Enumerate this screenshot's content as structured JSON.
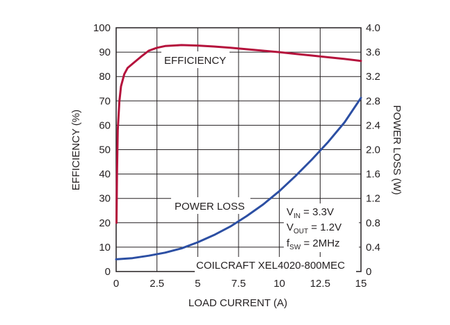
{
  "chart_data": {
    "type": "line",
    "xlabel": "LOAD CURRENT (A)",
    "ylabel": "EFFICIENCY (%)",
    "y2label": "POWER LOSS (W)",
    "xlim": [
      0,
      15
    ],
    "ylim": [
      0,
      100
    ],
    "y2lim": [
      0,
      4.0
    ],
    "xticks": [
      "0",
      "2.5",
      "5",
      "7.5",
      "10",
      "12.5",
      "15"
    ],
    "yticks": [
      "0",
      "10",
      "20",
      "30",
      "40",
      "50",
      "60",
      "70",
      "80",
      "90",
      "100"
    ],
    "y2ticks": [
      "0",
      "0.4",
      "0.8",
      "1.2",
      "1.6",
      "2.0",
      "2.4",
      "2.8",
      "3.2",
      "3.6",
      "4.0"
    ],
    "grid": true,
    "colors": {
      "efficiency": "#b5123c",
      "power_loss": "#2c4fa3",
      "axis": "#231f20",
      "grid": "#231f20"
    },
    "series": [
      {
        "axis": "left",
        "x": [
          0.02,
          0.05,
          0.1,
          0.2,
          0.3,
          0.5,
          0.7,
          1.0,
          1.5,
          2.0,
          2.5,
          3.0,
          4.0,
          5.0,
          6.0,
          7.0,
          8.0,
          9.0,
          10.0,
          11.0,
          12.0,
          13.0,
          14.0,
          15.0
        ],
        "y": [
          20,
          40,
          58,
          70,
          76,
          81,
          83.5,
          85.2,
          88,
          90.6,
          91.8,
          92.5,
          92.9,
          92.7,
          92.3,
          91.8,
          91.2,
          90.6,
          90.0,
          89.3,
          88.6,
          87.9,
          87.2,
          86.4
        ]
      },
      {
        "axis": "right",
        "x": [
          0,
          1,
          2,
          3,
          4,
          5,
          6,
          7,
          8,
          9,
          10,
          11,
          12,
          13,
          14,
          15
        ],
        "y": [
          0.2,
          0.22,
          0.26,
          0.31,
          0.38,
          0.48,
          0.6,
          0.74,
          0.91,
          1.1,
          1.32,
          1.57,
          1.84,
          2.13,
          2.45,
          2.85
        ]
      }
    ],
    "annotations": {
      "efficiency_label": "EFFICIENCY",
      "power_loss_label": "POWER LOSS",
      "vin_prefix": "V",
      "vin_sub": "IN",
      "vin_value": " = 3.3V",
      "vout_prefix": "V",
      "vout_sub": "OUT",
      "vout_value": " = 1.2V",
      "fsw_prefix": "f",
      "fsw_sub": "SW",
      "fsw_value": " = 2MHz",
      "inductor": "COILCRAFT XEL4020-800MEC"
    }
  }
}
